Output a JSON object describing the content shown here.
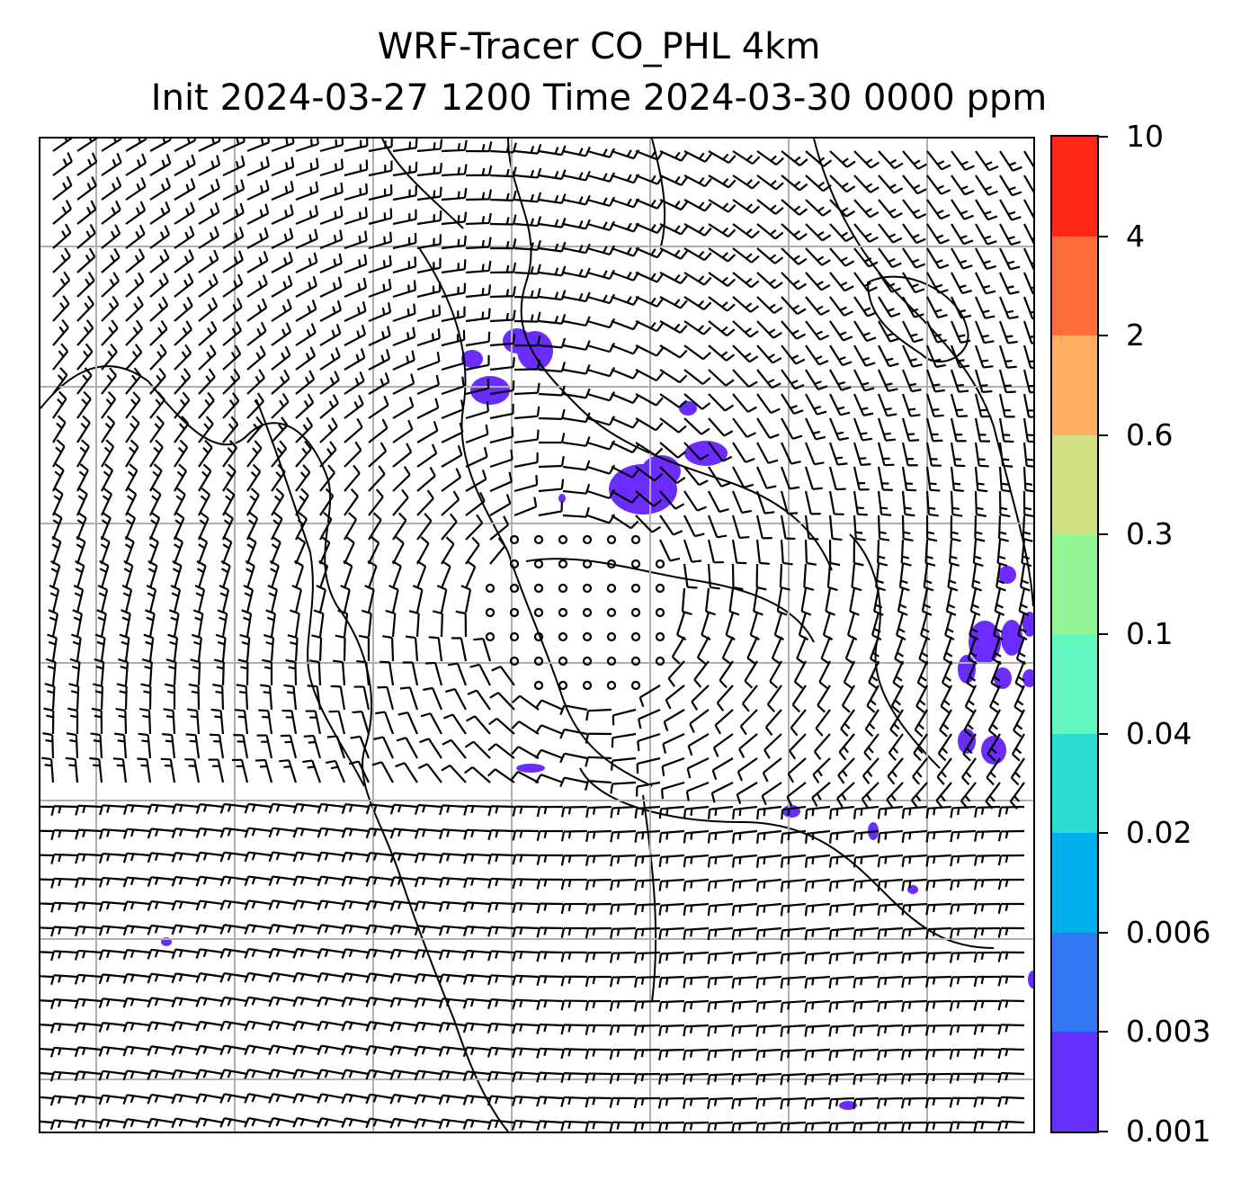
{
  "title": {
    "line1": "WRF-Tracer CO_PHL 4km",
    "line2": "Init 2024-03-27 1200 Time 2024-03-30 0000 ppm"
  },
  "map": {
    "gridlines": "on",
    "grid_color": "#b0b0b0",
    "coastline_color": "#000000",
    "barb_color": "#000000",
    "tracer_color": "#6a2cff"
  },
  "colorbar": {
    "orientation": "vertical",
    "placement": "right",
    "levels": [
      "0.001",
      "0.003",
      "0.006",
      "0.02",
      "0.04",
      "0.1",
      "0.3",
      "0.6",
      "2",
      "4",
      "10"
    ],
    "colors": [
      "#6430ff",
      "#3377f5",
      "#00b0ec",
      "#2ddcd3",
      "#63f8bf",
      "#93f596",
      "#d2e084",
      "#ffae62",
      "#ff6d3b",
      "#ff2718"
    ]
  }
}
